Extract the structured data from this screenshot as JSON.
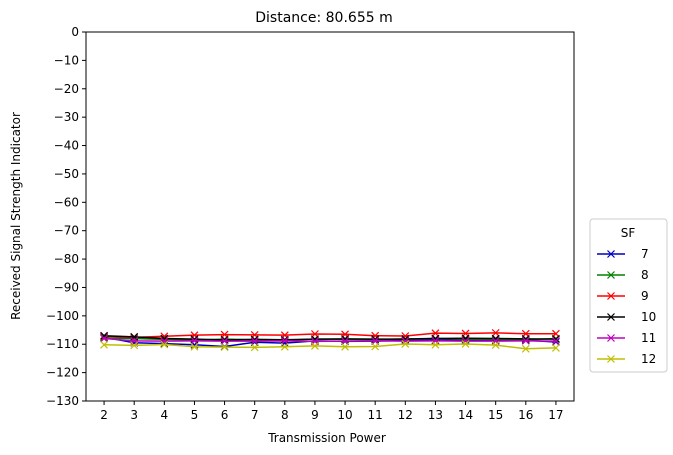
{
  "chart_data": {
    "type": "line",
    "title": "Distance: 80.655 m",
    "xlabel": "Transmission Power",
    "ylabel": "Received Signal Strength Indicator",
    "ylim": [
      -130,
      0
    ],
    "yticks": [
      0,
      -10,
      -20,
      -30,
      -40,
      -50,
      -60,
      -70,
      -80,
      -90,
      -100,
      -110,
      -120,
      -130
    ],
    "xlim": [
      1.4,
      17.6
    ],
    "x": [
      2,
      3,
      4,
      5,
      6,
      7,
      8,
      9,
      10,
      11,
      12,
      13,
      14,
      15,
      16,
      17
    ],
    "grid": false,
    "legend": {
      "title": "SF",
      "position": "right"
    },
    "series": [
      {
        "name": "7",
        "color": "#0000bf",
        "values": [
          -107.5,
          -109.5,
          -109.8,
          -110.2,
          -110.8,
          -109.3,
          -109.6,
          -108.8,
          -109.0,
          -108.9,
          -108.7,
          -108.6,
          -108.5,
          -108.6,
          -108.6,
          -109.2
        ]
      },
      {
        "name": "8",
        "color": "#008000",
        "values": [
          -107.8,
          -108.0,
          -108.3,
          -108.5,
          -108.2,
          -108.4,
          -108.6,
          -108.2,
          -108.3,
          -108.4,
          -108.1,
          -108.0,
          -108.2,
          -108.3,
          -108.4,
          -108.0
        ]
      },
      {
        "name": "9",
        "color": "#ff0000",
        "values": [
          -107.2,
          -107.6,
          -107.2,
          -106.8,
          -106.6,
          -106.7,
          -106.8,
          -106.4,
          -106.5,
          -107.0,
          -107.1,
          -106.1,
          -106.2,
          -106.0,
          -106.3,
          -106.3
        ]
      },
      {
        "name": "10",
        "color": "#000000",
        "values": [
          -107.0,
          -107.4,
          -108.0,
          -108.2,
          -108.5,
          -108.3,
          -108.4,
          -108.2,
          -108.1,
          -108.2,
          -108.2,
          -108.0,
          -107.9,
          -108.0,
          -108.1,
          -108.2
        ]
      },
      {
        "name": "11",
        "color": "#bf00bf",
        "values": [
          -108.0,
          -108.8,
          -108.9,
          -108.8,
          -108.9,
          -108.9,
          -108.8,
          -109.0,
          -108.9,
          -108.8,
          -108.9,
          -108.8,
          -108.9,
          -108.9,
          -108.8,
          -108.9
        ]
      },
      {
        "name": "12",
        "color": "#bfbf00",
        "values": [
          -110.2,
          -110.4,
          -110.1,
          -110.9,
          -111.0,
          -111.1,
          -110.9,
          -110.6,
          -110.9,
          -110.8,
          -109.9,
          -110.2,
          -109.9,
          -110.3,
          -111.6,
          -111.3
        ]
      }
    ]
  }
}
